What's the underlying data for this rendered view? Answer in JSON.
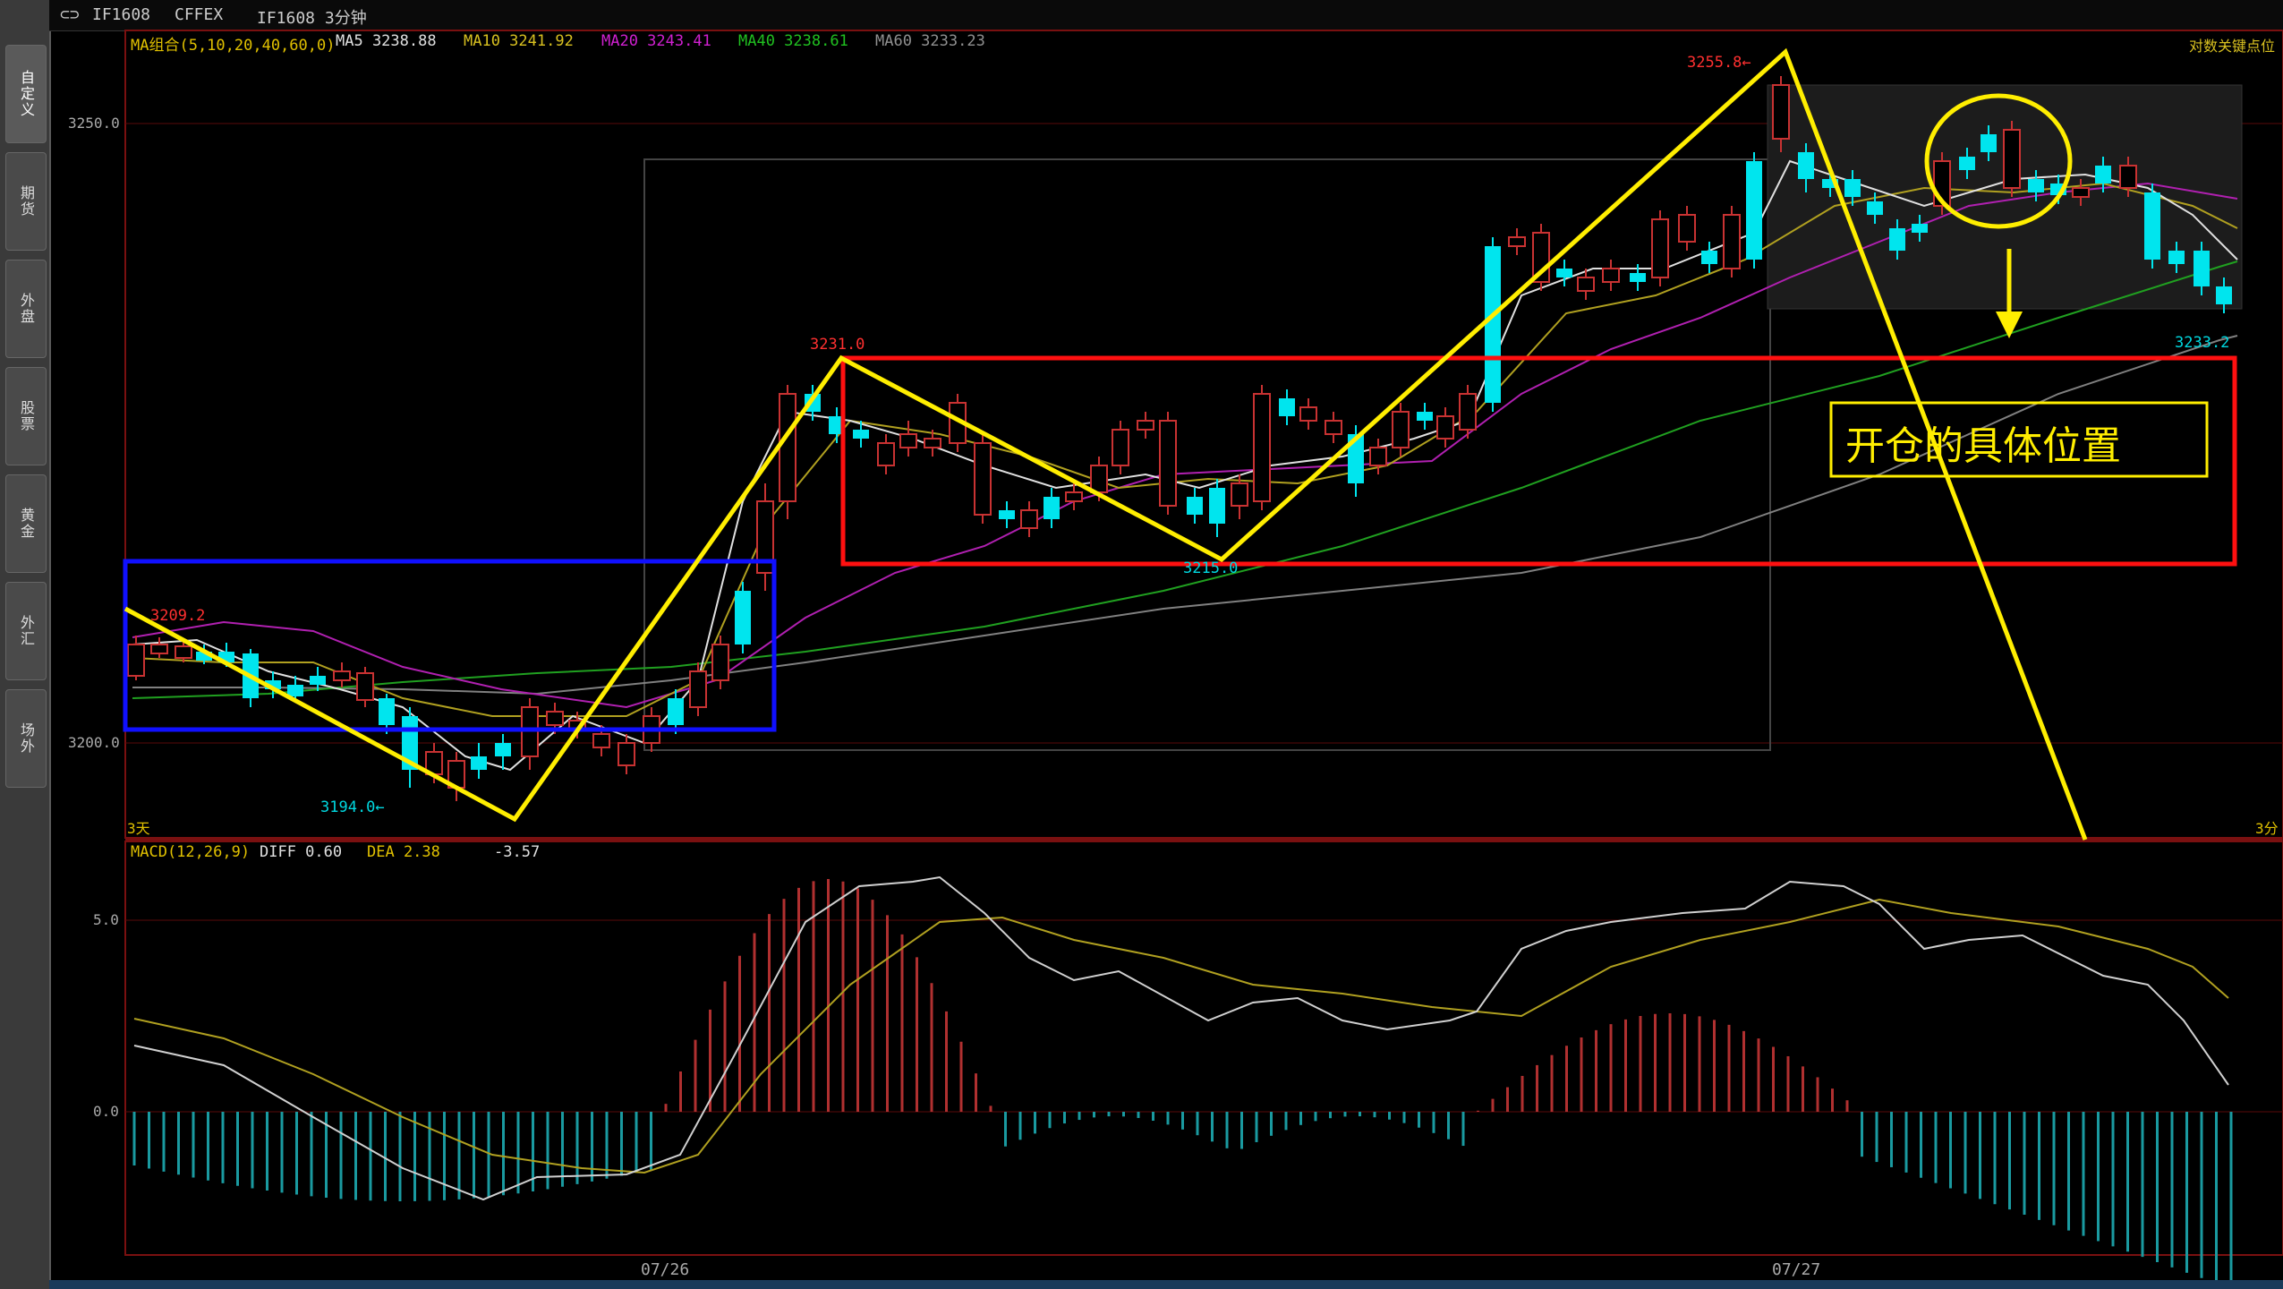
{
  "sidebar": {
    "tabs": [
      {
        "label": "自定义"
      },
      {
        "label": "期货"
      },
      {
        "label": "外盘"
      },
      {
        "label": "股票"
      },
      {
        "label": "黄金"
      },
      {
        "label": "外汇"
      },
      {
        "label": "场外"
      }
    ]
  },
  "titlebar": {
    "symbol": "IF1608",
    "exchange": "CFFEX",
    "period": "IF1608 3分钟"
  },
  "main_chart": {
    "ma_legend": {
      "label": "MA组合(5,10,20,40,60,0)",
      "ma5": "MA5 3238.88",
      "ma10": "MA10 3241.92",
      "ma20": "MA20 3243.41",
      "ma40": "MA40 3238.61",
      "ma60": "MA60 3233.23"
    },
    "right_label": "对数关键点位",
    "y_labels": [
      "3250.0",
      "3200.0"
    ],
    "left_corner": "3天",
    "right_corner": "3分",
    "annotations": {
      "high": "3255.8",
      "peak1": "3231.0",
      "low1": "3194.0",
      "start": "3209.2",
      "trough": "3215.0",
      "last": "3233.2"
    },
    "callout": "开仓的具体位置"
  },
  "macd": {
    "label": "MACD(12,26,9)",
    "diff": "DIFF  0.60",
    "dea": "DEA  2.38",
    "macd": "-3.57",
    "y_labels": [
      "5.0",
      "0.0"
    ]
  },
  "x_labels": [
    "07/26",
    "07/27"
  ],
  "colors": {
    "up": "#c83232",
    "down": "#00e5ee",
    "ma5": "#e0e0e0",
    "ma10": "#b0a020",
    "ma20": "#b020b0",
    "ma40": "#20a020",
    "ma60": "#808080",
    "trend": "#ffee00"
  }
}
